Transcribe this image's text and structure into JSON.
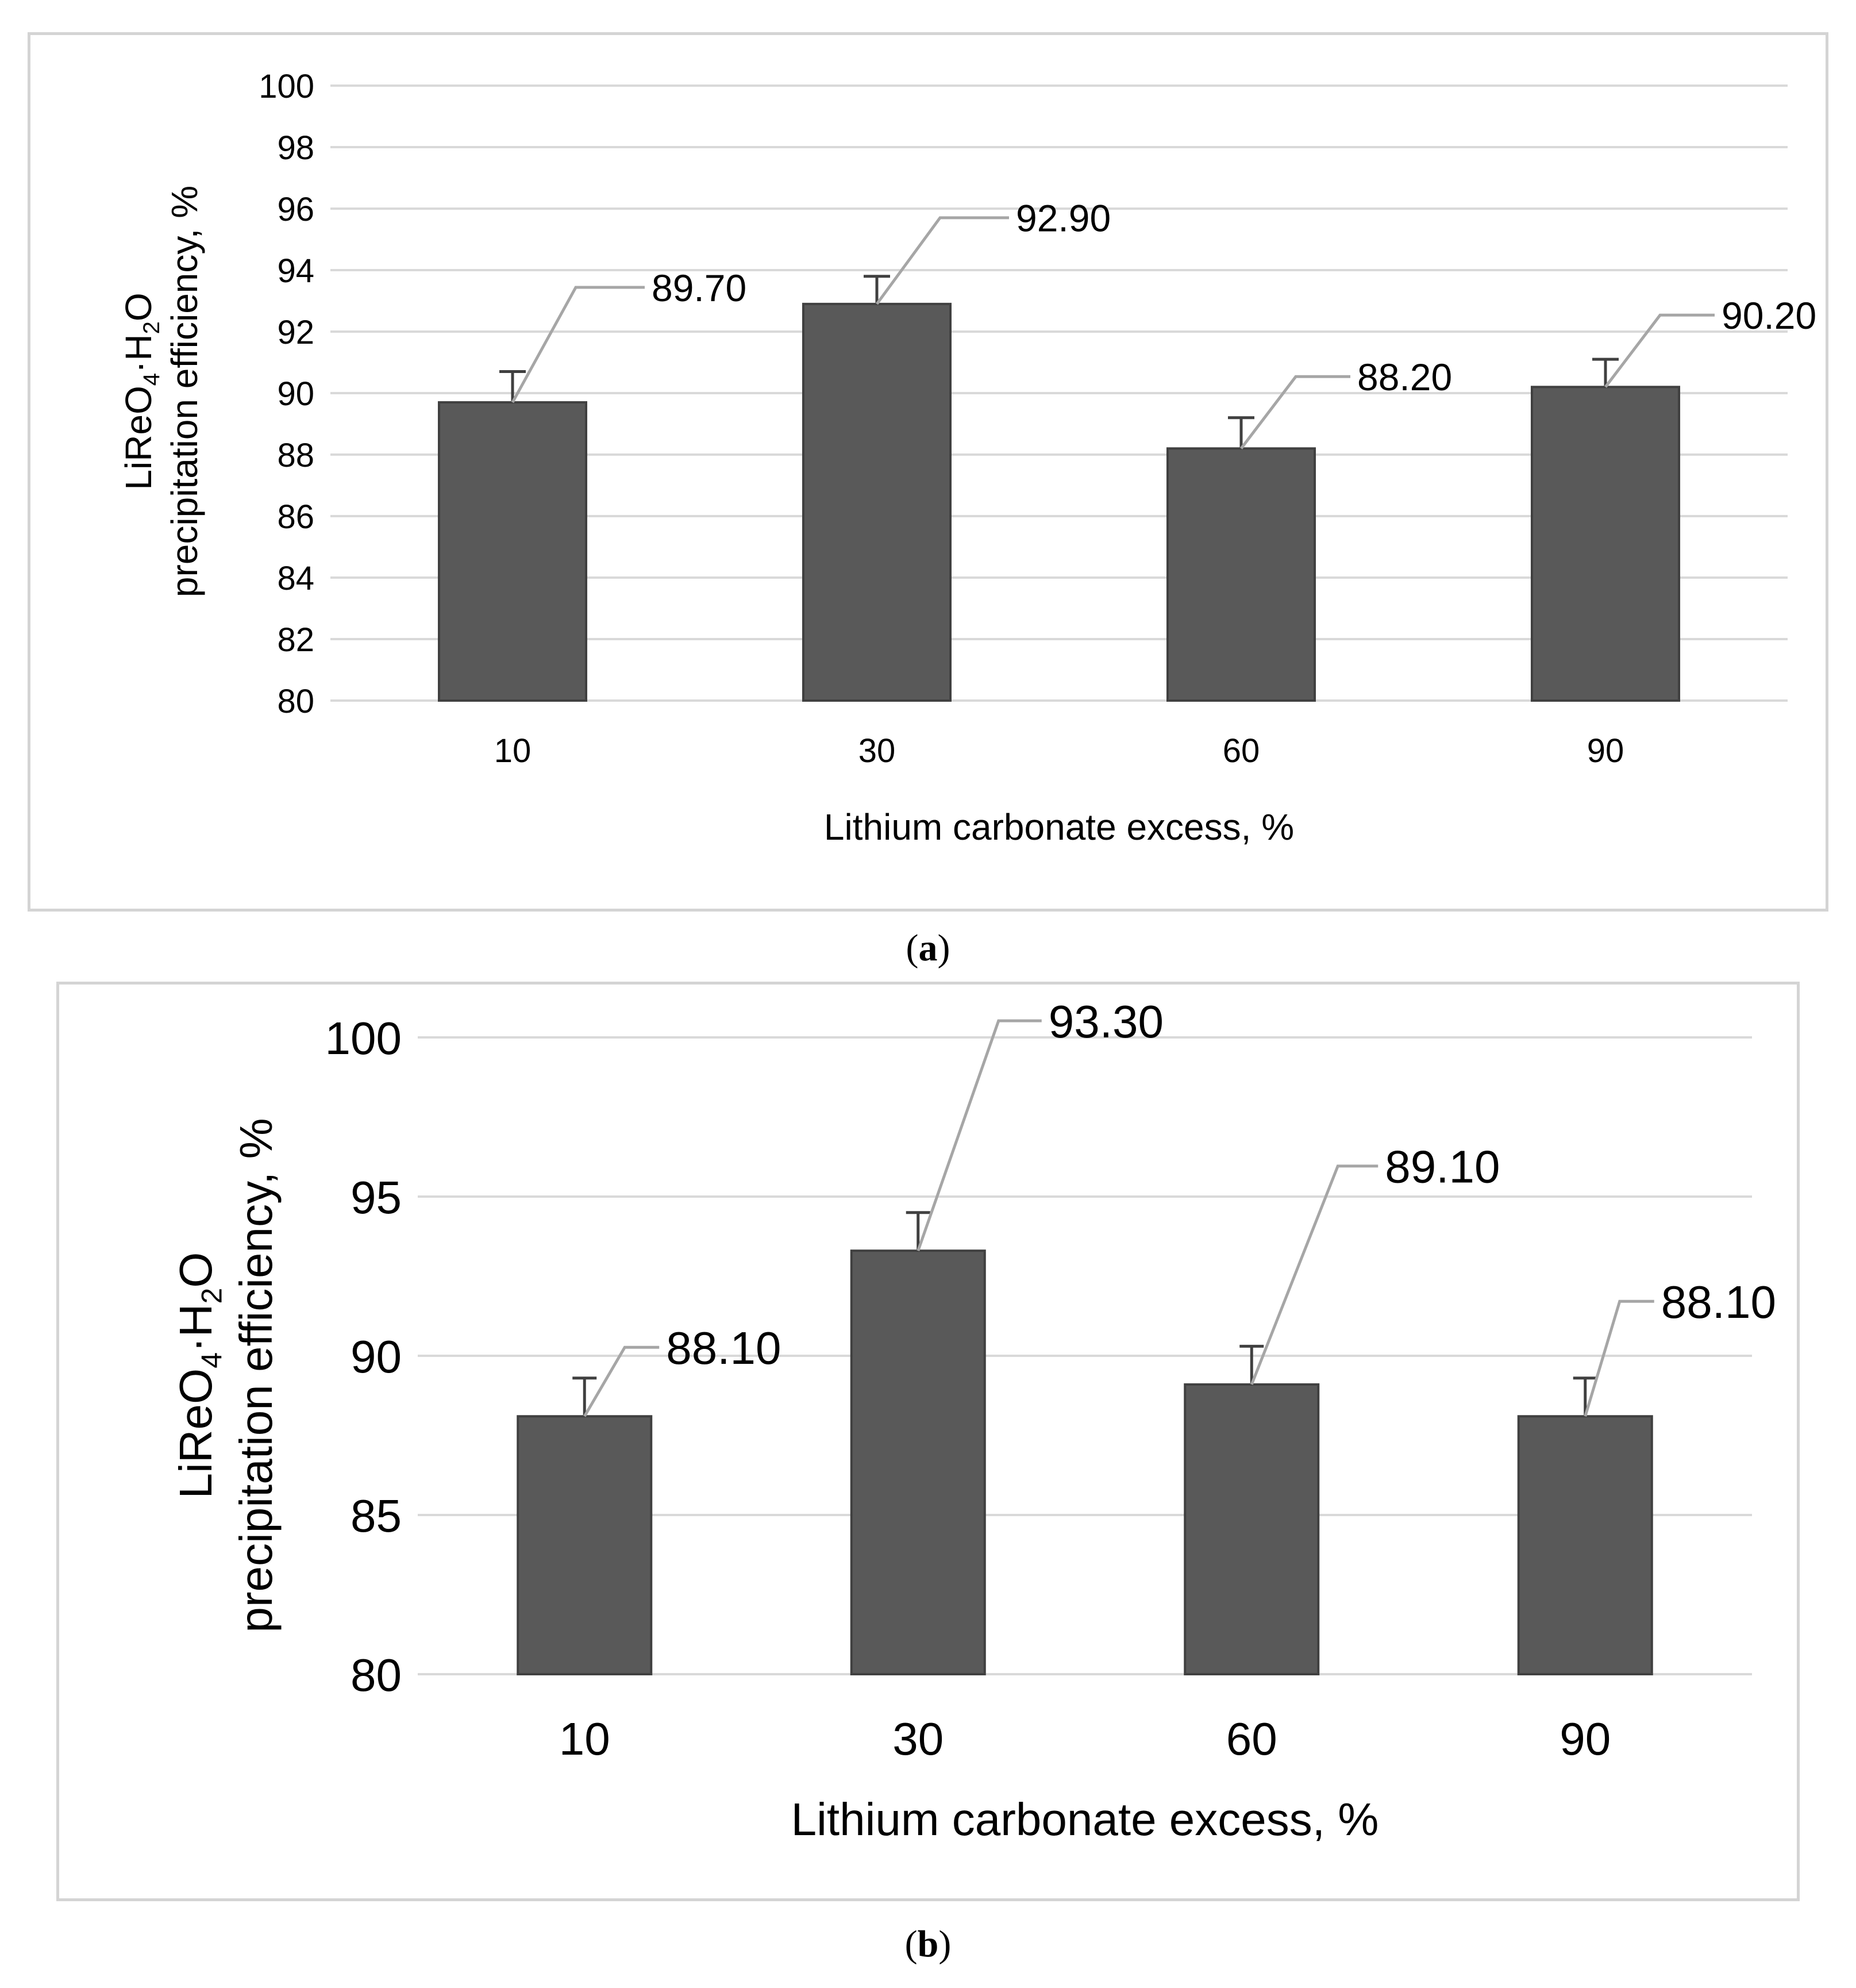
{
  "panels": [
    {
      "id": "a",
      "caption_letter": "a",
      "chart_data": {
        "type": "bar",
        "title": "",
        "categories": [
          "10",
          "30",
          "60",
          "90"
        ],
        "values": [
          89.7,
          92.9,
          88.2,
          90.2
        ],
        "value_labels": [
          "89.70",
          "92.90",
          "88.20",
          "90.20"
        ],
        "error_plus": [
          1.0,
          0.9,
          1.0,
          0.9
        ],
        "xlabel": "Lithium carbonate excess, %",
        "ylabel_line1_parts": [
          "LiReO",
          "4",
          "·H",
          "2",
          "O"
        ],
        "ylabel_line2": "precipitation efficiency, %",
        "ylim": [
          80,
          100
        ],
        "yticks": [
          "80",
          "82",
          "84",
          "86",
          "88",
          "90",
          "92",
          "94",
          "96",
          "98",
          "100"
        ],
        "grid": true,
        "bar_color": "#595959",
        "grid_color": "#d9d9d9",
        "leader_color": "#a6a6a6"
      }
    },
    {
      "id": "b",
      "caption_letter": "b",
      "chart_data": {
        "type": "bar",
        "title": "",
        "categories": [
          "10",
          "30",
          "60",
          "90"
        ],
        "values": [
          88.1,
          93.3,
          89.1,
          88.1
        ],
        "value_labels": [
          "88.10",
          "93.30",
          "89.10",
          "88.10"
        ],
        "error_plus": [
          1.2,
          1.2,
          1.2,
          1.2
        ],
        "xlabel": "Lithium carbonate excess, %",
        "ylabel_line1_parts": [
          "LiReO",
          "4",
          "·H",
          "2",
          "O"
        ],
        "ylabel_line2": "precipitation efficiency, %",
        "ylim": [
          80,
          100
        ],
        "yticks": [
          "80",
          "85",
          "90",
          "95",
          "100"
        ],
        "grid": true,
        "bar_color": "#595959",
        "grid_color": "#d9d9d9",
        "leader_color": "#a6a6a6"
      }
    }
  ]
}
